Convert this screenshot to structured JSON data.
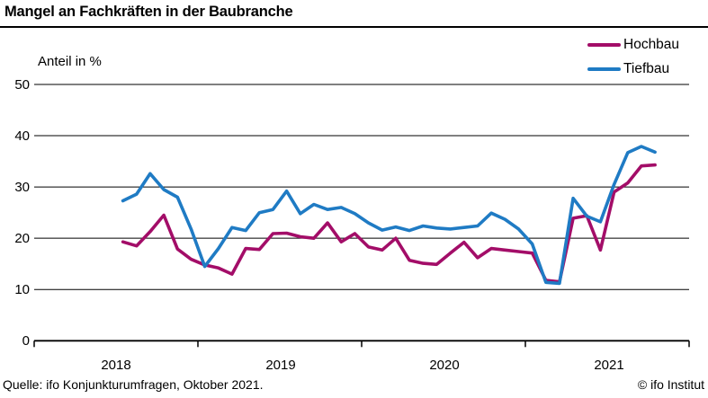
{
  "title": "Mangel an Fachkräften in der Baubranche",
  "y_axis_label": "Anteil in %",
  "legend": [
    {
      "label": "Hochbau",
      "color": "#a30d68"
    },
    {
      "label": "Tiefbau",
      "color": "#1f7bc4"
    }
  ],
  "footer": {
    "source": "Quelle: ifo Konjunkturumfragen, Oktober 2021.",
    "copyright": "© ifo Institut"
  },
  "chart_data": {
    "type": "line",
    "title": "Mangel an Fachkräften in der Baubranche",
    "ylabel": "Anteil in %",
    "ylim": [
      0,
      50
    ],
    "y_ticks": [
      0,
      10,
      20,
      30,
      40,
      50
    ],
    "grid": true,
    "legend_position": "top-right",
    "x_tick_labels": [
      "2018",
      "2019",
      "2020",
      "2021"
    ],
    "x": [
      "Jul 2018",
      "Aug 2018",
      "Sep 2018",
      "Okt 2018",
      "Nov 2018",
      "Dez 2018",
      "Jan 2019",
      "Feb 2019",
      "Mär 2019",
      "Apr 2019",
      "Mai 2019",
      "Jun 2019",
      "Jul 2019",
      "Aug 2019",
      "Sep 2019",
      "Okt 2019",
      "Nov 2019",
      "Dez 2019",
      "Jan 2020",
      "Feb 2020",
      "Mär 2020",
      "Apr 2020",
      "Mai 2020",
      "Jun 2020",
      "Jul 2020",
      "Aug 2020",
      "Sep 2020",
      "Okt 2020",
      "Nov 2020",
      "Dez 2020",
      "Jan 2021",
      "Feb 2021",
      "Mär 2021",
      "Apr 2021",
      "Mai 2021",
      "Jun 2021",
      "Jul 2021",
      "Aug 2021",
      "Sep 2021",
      "Okt 2021"
    ],
    "series": [
      {
        "name": "Hochbau",
        "color": "#a30d68",
        "values": [
          19.3,
          18.5,
          21.3,
          24.5,
          17.9,
          15.9,
          14.8,
          14.2,
          13.0,
          18.0,
          17.8,
          20.9,
          21.0,
          20.3,
          20.0,
          23.0,
          19.3,
          20.9,
          18.3,
          17.7,
          20.0,
          15.7,
          15.1,
          14.9,
          17.1,
          19.2,
          16.2,
          18.0,
          17.7,
          17.4,
          17.1,
          11.8,
          11.5,
          23.9,
          24.4,
          17.7,
          29.0,
          30.8,
          34.1,
          34.3
        ]
      },
      {
        "name": "Tiefbau",
        "color": "#1f7bc4",
        "values": [
          27.3,
          28.6,
          32.6,
          29.5,
          28.0,
          21.8,
          14.5,
          18.0,
          22.1,
          21.5,
          25.0,
          25.6,
          29.2,
          24.8,
          26.6,
          25.6,
          26.0,
          24.8,
          23.0,
          21.6,
          22.2,
          21.5,
          22.4,
          22.0,
          21.8,
          22.1,
          22.4,
          24.9,
          23.7,
          21.8,
          18.9,
          11.4,
          11.2,
          27.8,
          24.3,
          23.2,
          30.5,
          36.7,
          37.9,
          36.8
        ]
      }
    ]
  }
}
